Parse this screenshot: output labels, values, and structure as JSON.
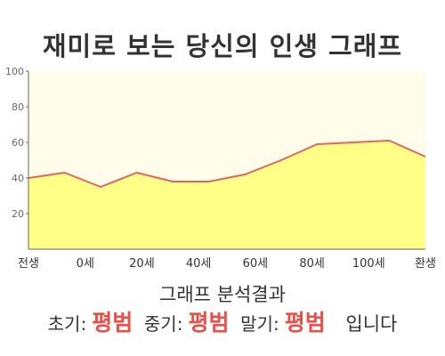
{
  "title": "재미로 보는 당신의 인생 그래프",
  "chart_data": {
    "type": "area",
    "x_labels": [
      "전생",
      "0세",
      "20세",
      "40세",
      "60세",
      "80세",
      "100세",
      "환생"
    ],
    "y_ticks": [
      20,
      40,
      60,
      80,
      100
    ],
    "ylim": [
      0,
      100
    ],
    "series": [
      {
        "values": [
          40,
          43,
          35,
          43,
          38,
          38,
          42,
          50,
          59,
          60,
          61,
          52
        ]
      }
    ],
    "grid": false,
    "legend": "none",
    "colors": {
      "line": "#e06666",
      "fill": "#ffff88",
      "background": "#fffdea",
      "axis": "#666666"
    }
  },
  "analysis": {
    "heading": "그래프 분석결과",
    "early_label": "초기:",
    "early_value": "평범",
    "mid_label": "중기:",
    "mid_value": "평범",
    "late_label": "말기:",
    "late_value": "평범",
    "suffix": "입니다",
    "highlight_color": "#e8504a"
  }
}
